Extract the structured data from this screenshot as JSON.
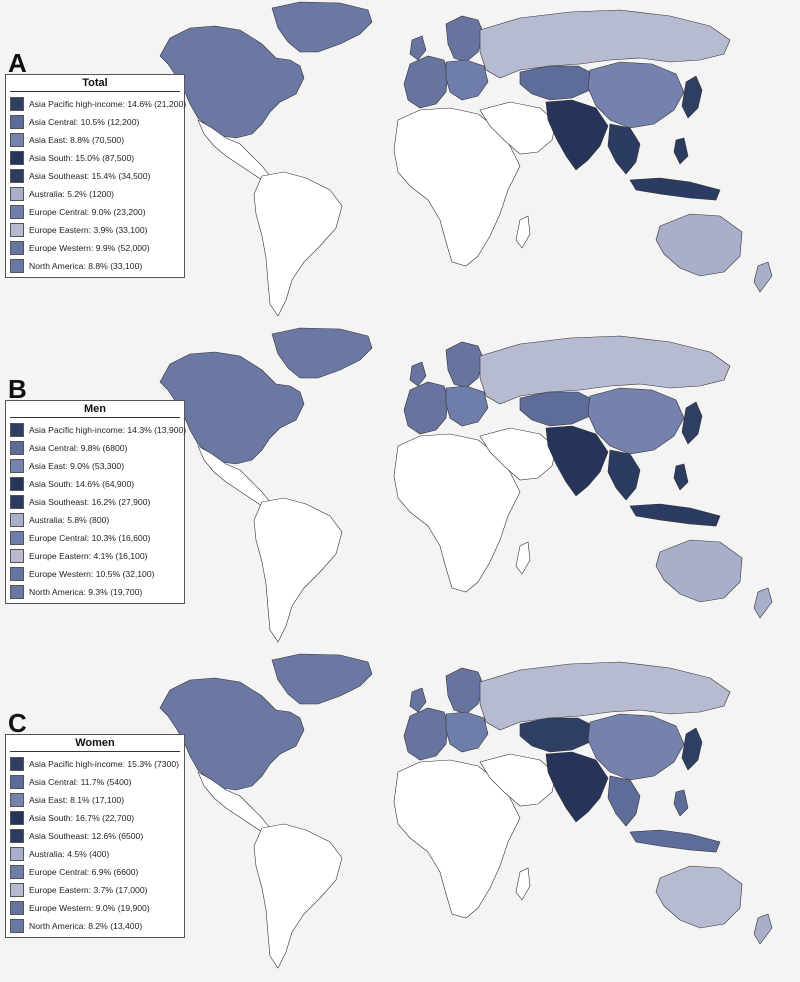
{
  "colors": {
    "asia_pacific_high_income": "#2f3f63",
    "asia_central": "#5d6c99",
    "asia_east": "#7582ad",
    "asia_south": "#26345a",
    "asia_southeast": "#2c3b61",
    "australia": "#a9afca",
    "europe_central": "#6f7daa",
    "europe_eastern": "#b7bbd1",
    "europe_western": "#67749f",
    "north_america": "#6b78a4",
    "no_data": "#ffffff"
  },
  "panels": [
    {
      "letter": "A",
      "title": "Total",
      "items": [
        {
          "label": "Asia Pacific high-income: 14.6% (21,200)",
          "color": "#2f3f63"
        },
        {
          "label": "Asia Central: 10.5% (12,200)",
          "color": "#5d6c99"
        },
        {
          "label": "Asia East: 8.8% (70,500)",
          "color": "#7582ad"
        },
        {
          "label": "Asia South: 15.0% (87,500)",
          "color": "#26345a"
        },
        {
          "label": "Asia Southeast: 15.4% (34,500)",
          "color": "#2c3b61"
        },
        {
          "label": "Australia: 5.2% (1200)",
          "color": "#a9afca"
        },
        {
          "label": "Europe Central: 9.0% (23,200)",
          "color": "#6f7daa"
        },
        {
          "label": "Europe Eastern: 3.9% (33,100)",
          "color": "#b7bbd1"
        },
        {
          "label": "Europe Western: 9.9% (52,000)",
          "color": "#67749f"
        },
        {
          "label": "North America: 8.8% (33,100)",
          "color": "#6b78a4"
        }
      ]
    },
    {
      "letter": "B",
      "title": "Men",
      "items": [
        {
          "label": "Asia Pacific high-income: 14.3% (13,900)",
          "color": "#2f3f63"
        },
        {
          "label": "Asia Central: 9.8% (6800)",
          "color": "#5d6c99"
        },
        {
          "label": "Asia East: 9.0% (53,300)",
          "color": "#7582ad"
        },
        {
          "label": "Asia South: 14.6% (64,900)",
          "color": "#26345a"
        },
        {
          "label": "Asia Southeast: 16.2% (27,900)",
          "color": "#2c3b61"
        },
        {
          "label": "Australia: 5.8% (800)",
          "color": "#a9afca"
        },
        {
          "label": "Europe Central: 10.3% (16,600)",
          "color": "#6f7daa"
        },
        {
          "label": "Europe Eastern: 4.1% (16,100)",
          "color": "#b7bbd1"
        },
        {
          "label": "Europe Western: 10.5% (32,100)",
          "color": "#67749f"
        },
        {
          "label": "North America: 9.3% (19,700)",
          "color": "#6b78a4"
        }
      ]
    },
    {
      "letter": "C",
      "title": "Women",
      "items": [
        {
          "label": "Asia Pacific high-income: 15.3% (7300)",
          "color": "#2f3f63"
        },
        {
          "label": "Asia Central: 11.7% (5400)",
          "color": "#5d6c99"
        },
        {
          "label": "Asia East: 8.1% (17,100)",
          "color": "#7582ad"
        },
        {
          "label": "Asia South: 16.7% (22,700)",
          "color": "#26345a"
        },
        {
          "label": "Asia Southeast: 12.6% (6500)",
          "color": "#2c3b61"
        },
        {
          "label": "Australia: 4.5% (400)",
          "color": "#a9afca"
        },
        {
          "label": "Europe Central: 6.9% (6600)",
          "color": "#6f7daa"
        },
        {
          "label": "Europe Eastern: 3.7% (17,000)",
          "color": "#b7bbd1"
        },
        {
          "label": "Europe Western: 9.0% (19,900)",
          "color": "#67749f"
        },
        {
          "label": "North America: 8.2% (13,400)",
          "color": "#6b78a4"
        }
      ]
    }
  ]
}
